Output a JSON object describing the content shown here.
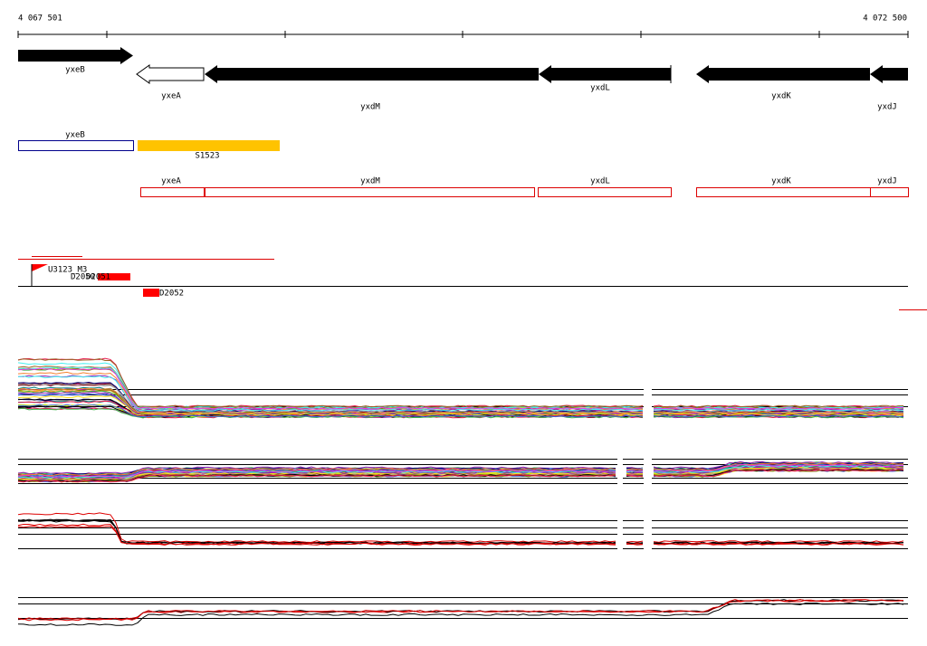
{
  "axis": {
    "start_label": "4 067 501",
    "end_label": "4 072 500"
  },
  "genes": [
    "yxeB",
    "yxeA",
    "yxdM",
    "yxdL",
    "yxdK",
    "yxdJ"
  ],
  "annotations": [
    "yxeB",
    "S1523"
  ],
  "gene_boxes": [
    "yxeA",
    "yxdM",
    "yxdL",
    "yxdK",
    "yxdJ"
  ],
  "probes": [
    "U3123_M3",
    "D2050",
    "D2051",
    "D2052"
  ]
}
